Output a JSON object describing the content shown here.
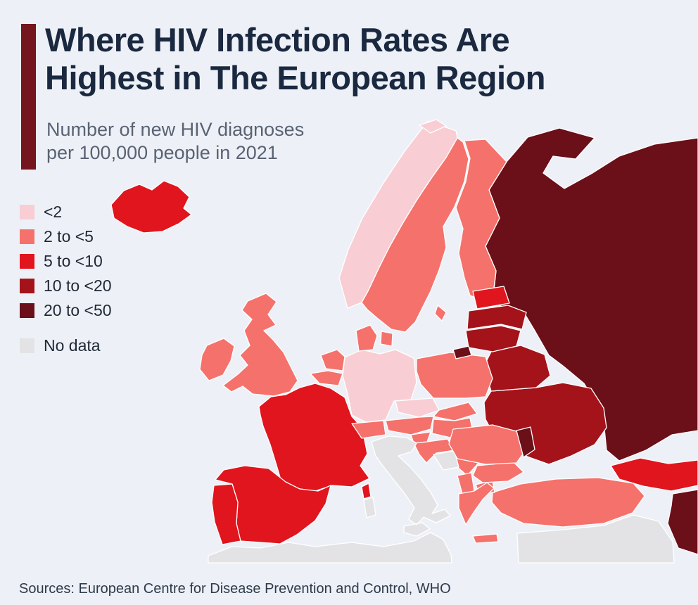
{
  "page": {
    "background": "#edf1f7"
  },
  "header": {
    "accent_color": "#75151e",
    "title_color": "#1b2940",
    "title_line1": "Where HIV Infection Rates Are",
    "title_line2": "Highest in The European Region",
    "subtitle_line1": "Number of new HIV diagnoses",
    "subtitle_line2": "per 100,000 people in 2021"
  },
  "legend": {
    "items": [
      {
        "key": "lt2",
        "label": "<2",
        "color": "#f9cdd4"
      },
      {
        "key": "2to5",
        "label": "2 to <5",
        "color": "#f5716b"
      },
      {
        "key": "5to10",
        "label": "5 to <10",
        "color": "#e0151d"
      },
      {
        "key": "10to20",
        "label": "10 to <20",
        "color": "#a4131a"
      },
      {
        "key": "20to50",
        "label": "20 to <50",
        "color": "#6b0f18"
      },
      {
        "key": "nodata",
        "label": "No data",
        "color": "#e3e3e5"
      }
    ]
  },
  "map": {
    "countries": [
      {
        "id": "russia",
        "name": "Russia",
        "category": "20to50"
      },
      {
        "id": "northafrica",
        "name": "North Africa",
        "category": "nodata"
      },
      {
        "id": "middleeast",
        "name": "Middle East",
        "category": "nodata"
      },
      {
        "id": "kazakhstan",
        "name": "Kazakhstan",
        "category": "20to50"
      },
      {
        "id": "caucasus",
        "name": "Georgia / Azerbaijan",
        "category": "5to10"
      },
      {
        "id": "turkey",
        "name": "Turkey",
        "category": "2to5"
      },
      {
        "id": "ukraine",
        "name": "Ukraine",
        "category": "10to20"
      },
      {
        "id": "belarus",
        "name": "Belarus",
        "category": "10to20"
      },
      {
        "id": "poland",
        "name": "Poland",
        "category": "2to5"
      },
      {
        "id": "germany",
        "name": "Germany",
        "category": "lt2"
      },
      {
        "id": "france",
        "name": "France",
        "category": "5to10"
      },
      {
        "id": "spain",
        "name": "Spain",
        "category": "5to10"
      },
      {
        "id": "portugal",
        "name": "Portugal",
        "category": "5to10"
      },
      {
        "id": "uk",
        "name": "United Kingdom",
        "category": "2to5"
      },
      {
        "id": "ireland",
        "name": "Ireland",
        "category": "2to5"
      },
      {
        "id": "iceland",
        "name": "Iceland",
        "category": "5to10"
      },
      {
        "id": "norway",
        "name": "Norway",
        "category": "lt2"
      },
      {
        "id": "sweden",
        "name": "Sweden",
        "category": "2to5"
      },
      {
        "id": "finland",
        "name": "Finland",
        "category": "2to5"
      },
      {
        "id": "denmark",
        "name": "Denmark",
        "category": "2to5"
      },
      {
        "id": "netherlands",
        "name": "Netherlands",
        "category": "2to5"
      },
      {
        "id": "belgium",
        "name": "Belgium",
        "category": "2to5"
      },
      {
        "id": "czechia",
        "name": "Czechia",
        "category": "lt2"
      },
      {
        "id": "slovakia",
        "name": "Slovakia",
        "category": "2to5"
      },
      {
        "id": "austria",
        "name": "Austria",
        "category": "2to5"
      },
      {
        "id": "switzerland",
        "name": "Switzerland",
        "category": "2to5"
      },
      {
        "id": "hungary",
        "name": "Hungary",
        "category": "2to5"
      },
      {
        "id": "slovenia",
        "name": "Slovenia",
        "category": "2to5"
      },
      {
        "id": "croatia",
        "name": "Croatia",
        "category": "2to5"
      },
      {
        "id": "serbia",
        "name": "Serbia",
        "category": "2to5"
      },
      {
        "id": "bosnia",
        "name": "Bosnia and Herzegovina",
        "category": "nodata"
      },
      {
        "id": "albania",
        "name": "Albania / N. Macedonia",
        "category": "2to5"
      },
      {
        "id": "greece",
        "name": "Greece",
        "category": "2to5"
      },
      {
        "id": "bulgaria",
        "name": "Bulgaria",
        "category": "2to5"
      },
      {
        "id": "romania",
        "name": "Romania",
        "category": "2to5"
      },
      {
        "id": "moldova",
        "name": "Moldova",
        "category": "20to50"
      },
      {
        "id": "estonia",
        "name": "Estonia",
        "category": "5to10"
      },
      {
        "id": "latvia",
        "name": "Latvia",
        "category": "10to20"
      },
      {
        "id": "lithuania",
        "name": "Lithuania",
        "category": "10to20"
      },
      {
        "id": "kaliningrad",
        "name": "Kaliningrad (Russia)",
        "category": "20to50"
      },
      {
        "id": "italy",
        "name": "Italy",
        "category": "nodata"
      },
      {
        "id": "svalbard",
        "name": "Svalbard (Norway)",
        "category": "lt2"
      }
    ]
  },
  "footer": {
    "sources": "Sources: European Centre for Disease Prevention and Control, WHO"
  }
}
